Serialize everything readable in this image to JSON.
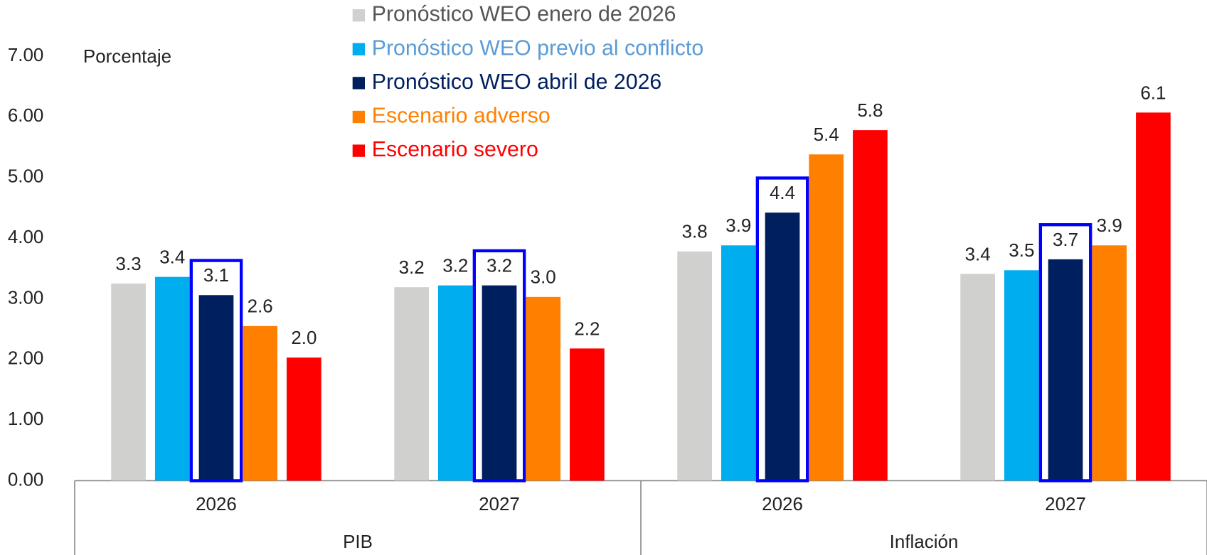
{
  "chart_data": {
    "type": "bar",
    "y_axis_label": "Porcentaje",
    "groups": [
      {
        "label": "PIB",
        "span": 2
      },
      {
        "label": "Inflación",
        "span": 2
      }
    ],
    "categories": [
      "2026",
      "2027",
      "2026",
      "2027"
    ],
    "ylim": [
      0,
      7
    ],
    "yticks": [
      {
        "value": 0,
        "label": "0.00"
      },
      {
        "value": 1,
        "label": "1.00"
      },
      {
        "value": 2,
        "label": "2.00"
      },
      {
        "value": 3,
        "label": "3.00"
      },
      {
        "value": 4,
        "label": "4.00"
      },
      {
        "value": 5,
        "label": "5.00"
      },
      {
        "value": 6,
        "label": "6.00"
      },
      {
        "value": 7,
        "label": "7.00"
      }
    ],
    "highlight_series": 2,
    "highlight_color": "#0000ff",
    "series": [
      {
        "name": "Pronóstico WEO enero de 2026",
        "color": "#d0d0ce",
        "label_color": "#555555",
        "values": [
          3.25,
          3.19,
          3.78,
          3.41
        ],
        "value_labels": [
          "3.3",
          "3.2",
          "3.8",
          "3.4"
        ]
      },
      {
        "name": "Pronóstico WEO previo al conflicto",
        "color": "#00adef",
        "label_color": "#5b9bd5",
        "values": [
          3.36,
          3.22,
          3.88,
          3.47
        ],
        "value_labels": [
          "3.4",
          "3.2",
          "3.9",
          "3.5"
        ]
      },
      {
        "name": "Pronóstico WEO  abril de 2026",
        "color": "#001f5f",
        "label_color": "#001f5f",
        "values": [
          3.06,
          3.22,
          4.42,
          3.65
        ],
        "value_labels": [
          "3.1",
          "3.2",
          "4.4",
          "3.7"
        ]
      },
      {
        "name": "Escenario adverso",
        "color": "#ff8000",
        "label_color": "#ff8000",
        "values": [
          2.55,
          3.03,
          5.38,
          3.88
        ],
        "value_labels": [
          "2.6",
          "3.0",
          "5.4",
          "3.9"
        ]
      },
      {
        "name": "Escenario severo",
        "color": "#ff0000",
        "label_color": "#ff0000",
        "values": [
          2.03,
          2.18,
          5.78,
          6.07
        ],
        "value_labels": [
          "2.0",
          "2.2",
          "5.8",
          "6.1"
        ]
      }
    ]
  }
}
